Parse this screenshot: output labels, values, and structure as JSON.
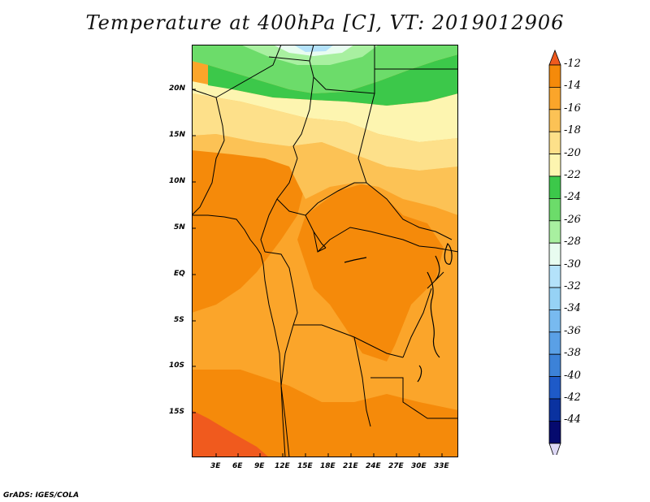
{
  "title": "Temperature at 400hPa [C], VT: 2019012906",
  "footer": "GrADS: IGES/COLA",
  "map": {
    "lat_labels": [
      "20N",
      "15N",
      "10N",
      "5N",
      "EQ",
      "5S",
      "10S",
      "15S"
    ],
    "lon_labels": [
      "3E",
      "6E",
      "9E",
      "12E",
      "15E",
      "18E",
      "21E",
      "24E",
      "27E",
      "30E",
      "33E"
    ]
  },
  "colorbar": {
    "levels": [
      "-12",
      "-14",
      "-16",
      "-18",
      "-20",
      "-22",
      "-24",
      "-26",
      "-28",
      "-30",
      "-32",
      "-34",
      "-36",
      "-38",
      "-40",
      "-42",
      "-44"
    ],
    "colors": [
      "#f05a1e",
      "#f58a0a",
      "#fba52a",
      "#fcc255",
      "#fde08a",
      "#fdf5b0",
      "#3cc84a",
      "#6cdc6a",
      "#a8f0a0",
      "#e8fcf0",
      "#b4e2fa",
      "#96d2f5",
      "#78baf0",
      "#5aa0e6",
      "#3c82d8",
      "#1e5ac8",
      "#0a32a0",
      "#050a6e",
      "#ddd8f5"
    ]
  }
}
